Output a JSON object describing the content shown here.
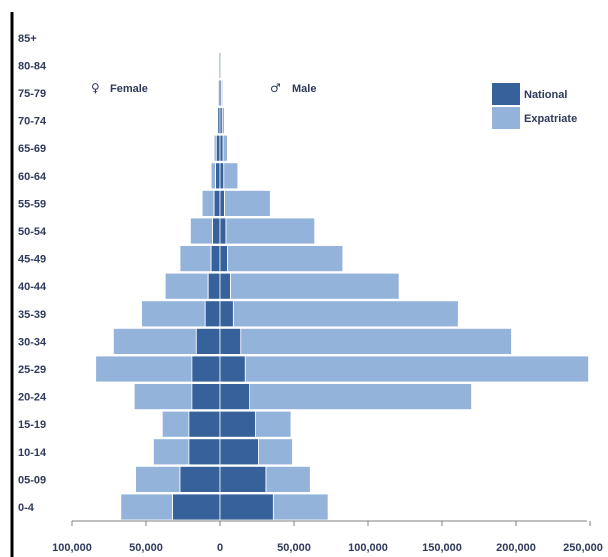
{
  "chart_data": {
    "type": "bar",
    "orientation": "horizontal",
    "stacked": true,
    "categories": [
      "0-4",
      "05-09",
      "10-14",
      "15-19",
      "20-24",
      "25-29",
      "30-34",
      "35-39",
      "40-44",
      "45-49",
      "50-54",
      "55-59",
      "60-64",
      "65-69",
      "70-74",
      "75-79",
      "80-84",
      "85+"
    ],
    "female_label": "Female",
    "male_label": "Male",
    "female_symbol": "♀",
    "male_symbol": "♂",
    "series": [
      {
        "name": "National",
        "color": "#36619a",
        "female": [
          32000,
          27000,
          21000,
          21000,
          19000,
          19000,
          16000,
          10000,
          8000,
          6000,
          5000,
          4000,
          3000,
          2500,
          1500,
          1000,
          800,
          500
        ],
        "male": [
          36000,
          31000,
          26000,
          24000,
          20000,
          17000,
          14000,
          9000,
          7000,
          5000,
          4000,
          3000,
          2500,
          2000,
          1500,
          1000,
          700,
          500
        ]
      },
      {
        "name": "Expatriate",
        "color": "#94b3db",
        "female": [
          35000,
          30000,
          24000,
          18000,
          39000,
          65000,
          56000,
          43000,
          29000,
          21000,
          15000,
          8000,
          3000,
          1500,
          500,
          500,
          300,
          200
        ],
        "male": [
          37000,
          30000,
          23000,
          24000,
          150000,
          232000,
          183000,
          152000,
          114000,
          78000,
          60000,
          31000,
          9500,
          3000,
          1500,
          800,
          500,
          300
        ]
      }
    ],
    "xticks": [
      "100,000",
      "50,000",
      "0",
      "50,000",
      "100,000",
      "150,000",
      "200,000",
      "250,000"
    ],
    "xlim": [
      -100000,
      250000
    ],
    "legend_position": "top-right",
    "grid": false
  }
}
